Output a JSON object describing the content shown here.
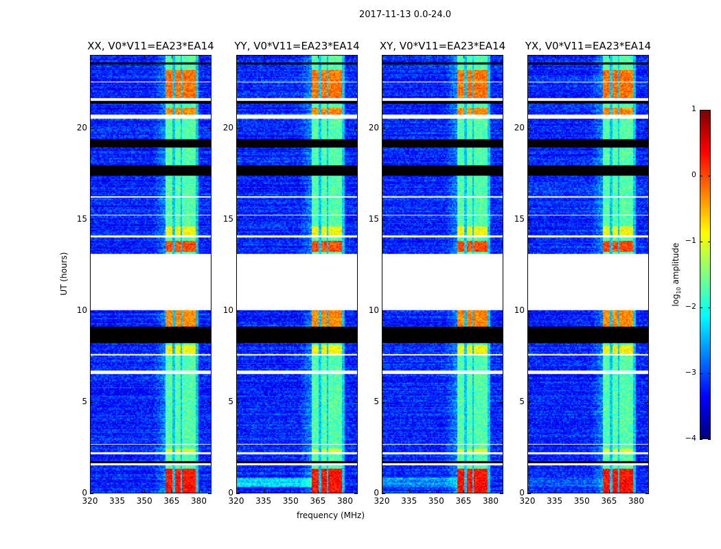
{
  "suptitle": "2017-11-13 0.0-24.0",
  "chart_data": [
    {
      "type": "heatmap",
      "title": "XX, V0*V11=EA23*EA14",
      "xlabel": "",
      "ylabel": "UT (hours)",
      "xlim": [
        320,
        387
      ],
      "ylim": [
        0,
        24
      ],
      "xticks": [
        320,
        335,
        350,
        365,
        380
      ],
      "yticks": [
        0,
        5,
        10,
        15,
        20
      ],
      "low_band_streak": 0
    },
    {
      "type": "heatmap",
      "title": "YY, V0*V11=EA23*EA14",
      "xlabel": "frequency (MHz)",
      "ylabel": "",
      "xlim": [
        320,
        387
      ],
      "ylim": [
        0,
        24
      ],
      "xticks": [
        320,
        335,
        350,
        365,
        380
      ],
      "yticks": [
        0,
        5,
        10,
        15,
        20
      ],
      "low_band_streak": 1
    },
    {
      "type": "heatmap",
      "title": "XY, V0*V11=EA23*EA14",
      "xlabel": "",
      "ylabel": "",
      "xlim": [
        320,
        387
      ],
      "ylim": [
        0,
        24
      ],
      "xticks": [
        320,
        335,
        350,
        365,
        380
      ],
      "yticks": [
        0,
        5,
        10,
        15,
        20
      ],
      "low_band_streak": 0.6
    },
    {
      "type": "heatmap",
      "title": "YX, V0*V11=EA23*EA14",
      "xlabel": "",
      "ylabel": "",
      "xlim": [
        320,
        387
      ],
      "ylim": [
        0,
        24
      ],
      "xticks": [
        320,
        335,
        350,
        365,
        380
      ],
      "yticks": [
        0,
        5,
        10,
        15,
        20
      ],
      "low_band_streak": 0.3
    }
  ],
  "heatmap_model": {
    "colormap": "jet",
    "clim": [
      -4,
      1
    ],
    "background_log_amplitude": -3.2,
    "rfi_subbands_mhz": [
      [
        362,
        366
      ],
      [
        367,
        370.5
      ],
      [
        371,
        374.5
      ],
      [
        375,
        379
      ]
    ],
    "rfi_default_log_amplitude": -1.7,
    "bright_periods_hours": [
      {
        "t": [
          0.0,
          1.3
        ],
        "level": 0.3
      },
      {
        "t": [
          2.2,
          2.4
        ],
        "level": -1.0
      },
      {
        "t": [
          7.6,
          8.1
        ],
        "level": -0.9
      },
      {
        "t": [
          9.1,
          10.0
        ],
        "level": -0.3
      },
      {
        "t": [
          13.2,
          13.8
        ],
        "level": 0.0
      },
      {
        "t": [
          14.1,
          14.6
        ],
        "level": -0.9
      },
      {
        "t": [
          20.6,
          21.1
        ],
        "level": -0.3
      },
      {
        "t": [
          21.6,
          23.2
        ],
        "level": -0.2
      }
    ],
    "flagged_white_hours": [
      [
        1.5,
        1.6
      ],
      [
        2.1,
        2.2
      ],
      [
        2.6,
        2.65
      ],
      [
        6.5,
        6.7
      ],
      [
        7.5,
        7.6
      ],
      [
        10.0,
        13.1
      ],
      [
        14.0,
        14.1
      ],
      [
        15.2,
        15.25
      ],
      [
        16.2,
        16.25
      ],
      [
        20.5,
        20.75
      ],
      [
        21.5,
        21.65
      ],
      [
        22.5,
        22.55
      ]
    ],
    "flagged_black_hours": [
      [
        1.6,
        1.7
      ],
      [
        8.2,
        9.1
      ],
      [
        17.4,
        17.95
      ],
      [
        18.95,
        19.4
      ],
      [
        21.35,
        21.5
      ],
      [
        23.5,
        23.6
      ]
    ]
  },
  "colorbar": {
    "ticks": [
      1,
      0,
      -1,
      -2,
      -3,
      -4
    ],
    "tick_labels": [
      "1",
      "0",
      "−1",
      "−2",
      "−3",
      "−4"
    ],
    "label_base": "log",
    "label_sub": "10",
    "label_rest": " amplitude"
  }
}
